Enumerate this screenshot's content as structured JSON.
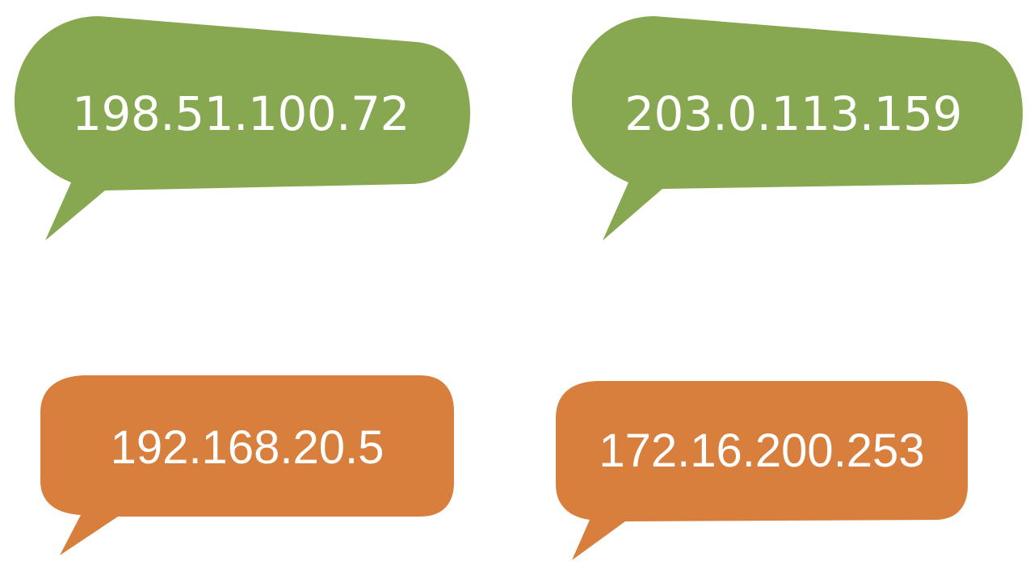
{
  "colors": {
    "green": "#87a851",
    "orange": "#d87f3e",
    "text": "#ffffff"
  },
  "bubbles": [
    {
      "text": "198.51.100.72",
      "color": "green"
    },
    {
      "text": "203.0.113.159",
      "color": "green"
    },
    {
      "text": "192.168.20.5",
      "color": "orange"
    },
    {
      "text": "172.16.200.253",
      "color": "orange"
    }
  ]
}
